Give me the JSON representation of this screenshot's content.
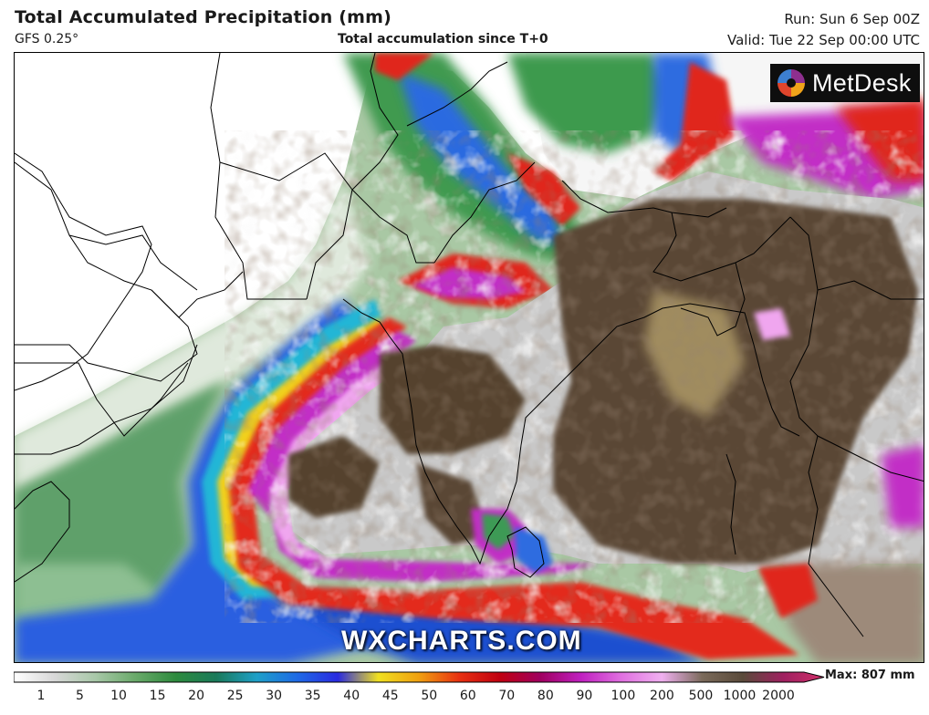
{
  "header": {
    "title": "Total Accumulated Precipitation (mm)",
    "model": "GFS 0.25°",
    "subtitle": "Total accumulation since T+0",
    "run": "Run: Sun 6 Sep 00Z",
    "valid": "Valid: Tue 22 Sep 00:00 UTC"
  },
  "branding": {
    "logo_text": "MetDesk",
    "watermark": "WXCHARTS.COM"
  },
  "legend": {
    "max_label": "Max: 807 mm",
    "tick_labels": [
      "1",
      "5",
      "10",
      "15",
      "20",
      "25",
      "30",
      "35",
      "40",
      "45",
      "50",
      "60",
      "70",
      "80",
      "90",
      "100",
      "200",
      "500",
      "1000",
      "2000"
    ],
    "color_stops": [
      "#ffffff",
      "#d8d8d8",
      "#a9c8a9",
      "#6aaa6a",
      "#2e8b3e",
      "#1a7a5a",
      "#1fa0c8",
      "#1e6ae6",
      "#2a2ae0",
      "#f0e020",
      "#f0a010",
      "#e83010",
      "#c00010",
      "#a00060",
      "#c020c0",
      "#e070e0",
      "#f0b0f0",
      "#7a6a5a",
      "#5a4a3a",
      "#a02060",
      "#d0306a"
    ]
  },
  "colors": {
    "land_dry": "#ffffff",
    "border": "#000000",
    "green_light": "#b6d6b0",
    "green": "#4f9a55",
    "green_dark": "#2f7d3c",
    "blue": "#1f5fe0",
    "cyan": "#20b8d8",
    "yellow": "#f2d21a",
    "red": "#e0261c",
    "magenta": "#c12bc6",
    "pink": "#ef9fee",
    "grey": "#c8c8c8",
    "brown_dark": "#4e3b2c",
    "brown_light": "#9c8a5c"
  }
}
